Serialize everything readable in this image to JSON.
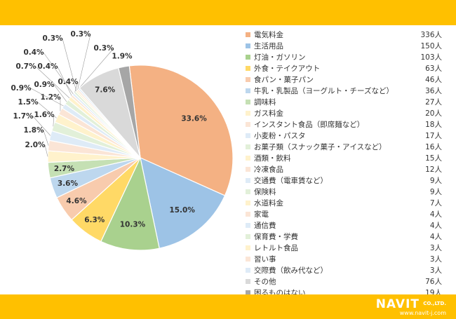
{
  "chart_data": {
    "type": "pie",
    "categories": [
      "電気料金",
      "生活用品",
      "灯油・ガソリン",
      "外食・テイクアウト",
      "食パン・菓子パン",
      "牛乳・乳製品（ヨーグルト・チーズなど）",
      "調味料",
      "ガス料金",
      "インスタント食品（即席麺など）",
      "小麦粉・パスタ",
      "お菓子類（スナック菓子・アイスなど）",
      "酒類・飲料",
      "冷凍食品",
      "交通費（電車賃など）",
      "保険料",
      "水道料金",
      "家電",
      "通信費",
      "保育費・学費",
      "レトルト食品",
      "習い事",
      "交際費（飲み代など）",
      "その他",
      "困るものはない"
    ],
    "counts": [
      "336人",
      "150人",
      "103人",
      "63人",
      "46人",
      "36人",
      "27人",
      "20人",
      "18人",
      "17人",
      "16人",
      "15人",
      "12人",
      "9人",
      "9人",
      "7人",
      "4人",
      "4人",
      "4人",
      "3人",
      "3人",
      "3人",
      "76人",
      "19人"
    ],
    "values": [
      336,
      150,
      103,
      63,
      46,
      36,
      27,
      20,
      18,
      17,
      16,
      15,
      12,
      9,
      9,
      7,
      4,
      4,
      4,
      3,
      3,
      3,
      76,
      19
    ],
    "percent_labels": [
      "33.6%",
      "15.0%",
      "10.3%",
      "6.3%",
      "4.6%",
      "3.6%",
      "2.7%",
      "2.0%",
      "1.8%",
      "1.7%",
      "1.6%",
      "1.5%",
      "1.2%",
      "0.9%",
      "0.9%",
      "0.7%",
      "0.4%",
      "0.4%",
      "0.4%",
      "0.3%",
      "0.3%",
      "0.3%",
      "7.6%",
      "1.9%"
    ],
    "colors": [
      "#f4b183",
      "#9dc3e6",
      "#a9d18e",
      "#ffd966",
      "#f8cbad",
      "#bdd7ee",
      "#c5e0b4",
      "#fff2cc",
      "#fbe5d6",
      "#deebf7",
      "#e2f0d9",
      "#fff2cc",
      "#fbe5d6",
      "#deebf7",
      "#e2f0d9",
      "#fff2cc",
      "#fbe5d6",
      "#deebf7",
      "#e2f0d9",
      "#fff2cc",
      "#fbe5d6",
      "#deebf7",
      "#d9d9d9",
      "#a6a6a6"
    ]
  },
  "brand": {
    "name": "NAVIT",
    "suffix": "CO.,LTD.",
    "url": "www.navit-j.com",
    "accent": "#ffc000"
  }
}
